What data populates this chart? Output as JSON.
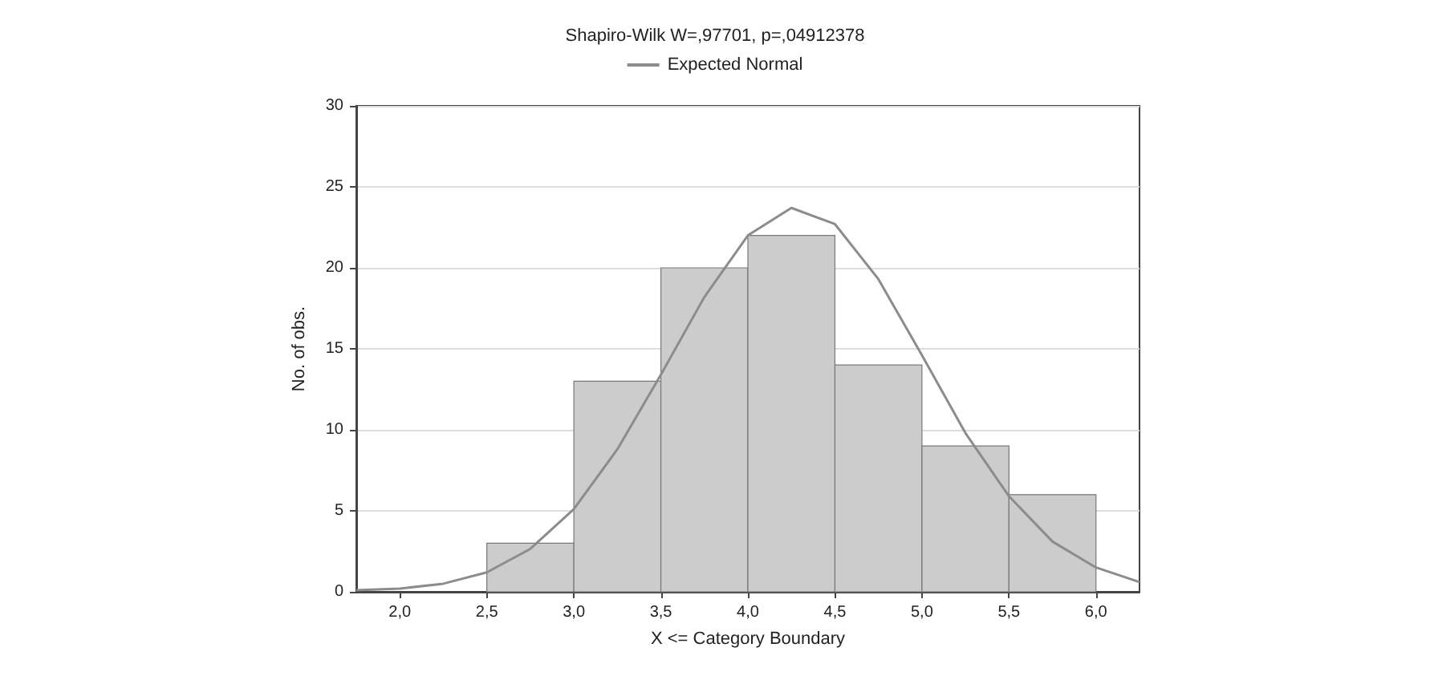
{
  "chart_data": {
    "type": "histogram",
    "title": "Shapiro-Wilk W=,97701, p=,04912378",
    "xlabel": "X <= Category Boundary",
    "ylabel": "No. of obs.",
    "bins": [
      2.5,
      3.0,
      3.5,
      4.0,
      4.5,
      5.0,
      5.5,
      6.0
    ],
    "values": [
      3,
      13,
      20,
      22,
      14,
      9,
      6
    ],
    "color": "#cccccc",
    "series": [
      {
        "name": "Expected Normal",
        "type": "line",
        "color": "#8c8c8c",
        "x": [
          1.75,
          2.0,
          2.25,
          2.5,
          2.75,
          3.0,
          3.25,
          3.5,
          3.75,
          4.0,
          4.25,
          4.5,
          4.75,
          5.0,
          5.25,
          5.5,
          5.75,
          6.0,
          6.25
        ],
        "values": [
          0.1,
          0.2,
          0.5,
          1.2,
          2.65,
          5.1,
          8.8,
          13.4,
          18.2,
          22.0,
          23.7,
          22.7,
          19.3,
          14.6,
          9.8,
          5.9,
          3.1,
          1.5,
          0.6
        ]
      }
    ],
    "xlim": [
      1.75,
      6.25
    ],
    "xticks": [
      {
        "value": 2,
        "label": "2,0"
      },
      {
        "value": 2.5,
        "label": "2,5"
      },
      {
        "value": 3,
        "label": "3,0"
      },
      {
        "value": 3.5,
        "label": "3,5"
      },
      {
        "value": 4,
        "label": "4,0"
      },
      {
        "value": 4.5,
        "label": "4,5"
      },
      {
        "value": 5,
        "label": "5,0"
      },
      {
        "value": 5.5,
        "label": "5,5"
      },
      {
        "value": 6,
        "label": "6,0"
      }
    ],
    "ylim": [
      0,
      30
    ],
    "yticks": [
      0,
      5,
      10,
      15,
      20,
      25,
      30
    ],
    "grid": "y",
    "legend": "top",
    "marker": "none",
    "line_style": "solid"
  }
}
